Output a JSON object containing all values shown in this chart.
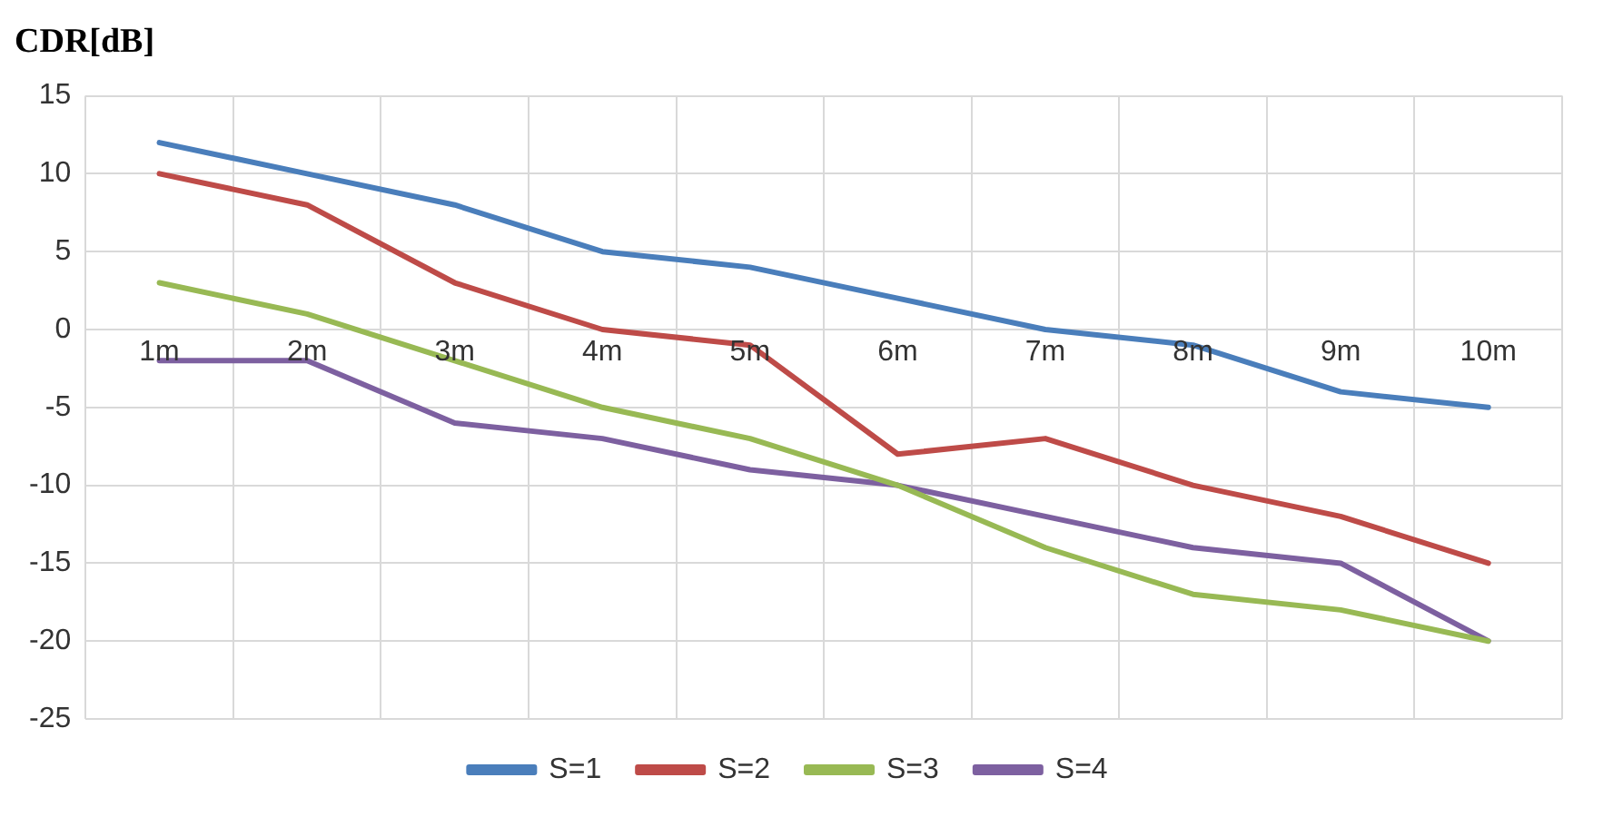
{
  "chart_data": {
    "type": "line",
    "title": "CDR[dB]",
    "categories": [
      "1m",
      "2m",
      "3m",
      "4m",
      "5m",
      "6m",
      "7m",
      "8m",
      "9m",
      "10m"
    ],
    "series": [
      {
        "name": "S=1",
        "color": "#4a7ebb",
        "values": [
          12,
          10,
          8,
          5,
          4,
          2,
          0,
          -1,
          -4,
          -5
        ]
      },
      {
        "name": "S=2",
        "color": "#be4b48",
        "values": [
          10,
          8,
          3,
          0,
          -1,
          -8,
          -7,
          -10,
          -12,
          -15
        ]
      },
      {
        "name": "S=3",
        "color": "#98b954",
        "values": [
          3,
          1,
          -2,
          -5,
          -7,
          -10,
          -14,
          -17,
          -18,
          -20
        ]
      },
      {
        "name": "S=4",
        "color": "#7d60a0",
        "values": [
          -2,
          -2,
          -6,
          -7,
          -9,
          -10,
          -12,
          -14,
          -15,
          -20
        ]
      }
    ],
    "ylim": [
      -25,
      15
    ],
    "yticks": [
      -25,
      -20,
      -15,
      -10,
      -5,
      0,
      5,
      10,
      15
    ],
    "grid": true,
    "legend": "bottom",
    "marker": "none",
    "line_style": "solid"
  }
}
